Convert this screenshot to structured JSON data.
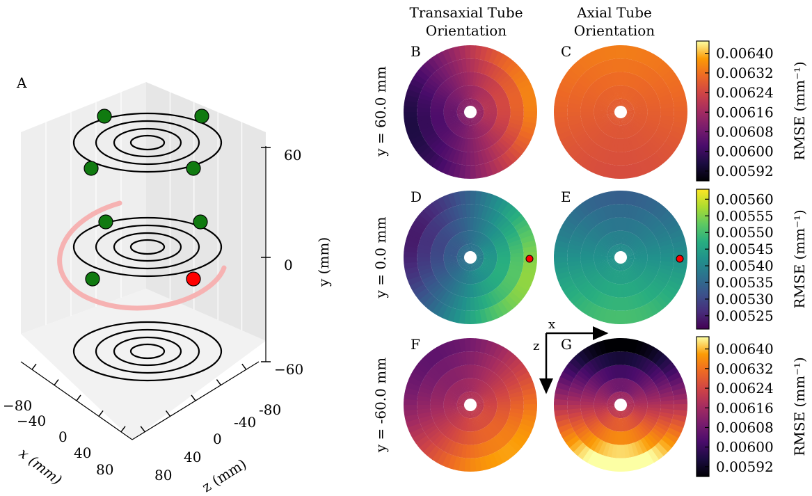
{
  "chart_data": [
    {
      "panel": "A",
      "type": "scatter-3d",
      "axes": {
        "x": {
          "label": "x (mm)",
          "ticks": [
            "−80",
            "−40",
            "0",
            "40",
            "80"
          ]
        },
        "z": {
          "label": "z (mm)",
          "ticks": [
            "-80",
            "-40",
            "0",
            "40",
            "80"
          ]
        },
        "y": {
          "label": "y (mm)",
          "ticks": [
            "60",
            "0",
            "−60"
          ]
        }
      },
      "ring_levels_y_mm": [
        60,
        0,
        -60
      ],
      "rings_per_level": 4,
      "green_markers_per_level": [
        4,
        3,
        0
      ],
      "red_markers_per_level": [
        0,
        1,
        0
      ],
      "colors": {
        "green": "#107a10",
        "red": "#ff0000",
        "arc": "#f6b2b2"
      }
    },
    {
      "type": "heatmap",
      "columns": [
        "Transaxial Tube\nOrientation",
        "Axial Tube\nOrientation"
      ],
      "rows": [
        {
          "label": "y = 60.0 mm",
          "panels": [
            "B",
            "C"
          ],
          "colormap": "inferno",
          "colorbar": {
            "label": "RMSE (mm⁻¹)",
            "ticks": [
              "0.00640",
              "0.00632",
              "0.00624",
              "0.00616",
              "0.00608",
              "0.00600",
              "0.00592"
            ],
            "range": [
              0.00588,
              0.00645
            ]
          }
        },
        {
          "label": "y = 0.0 mm",
          "panels": [
            "D",
            "E"
          ],
          "colormap": "viridis",
          "colorbar": {
            "label": "RMSE (mm⁻¹)",
            "ticks": [
              "0.00560",
              "0.00555",
              "0.00550",
              "0.00545",
              "0.00540",
              "0.00535",
              "0.00530",
              "0.00525"
            ],
            "range": [
              0.00521,
              0.00563
            ]
          }
        },
        {
          "label": "y = -60.0 mm",
          "panels": [
            "F",
            "G"
          ],
          "colormap": "inferno",
          "colorbar": {
            "label": "RMSE (mm⁻¹)",
            "ticks": [
              "0.00640",
              "0.00632",
              "0.00624",
              "0.00616",
              "0.00608",
              "0.00600",
              "0.00592"
            ],
            "range": [
              0.00588,
              0.00645
            ]
          }
        }
      ],
      "orientation_axes": {
        "x": "x",
        "z": "z"
      }
    }
  ]
}
